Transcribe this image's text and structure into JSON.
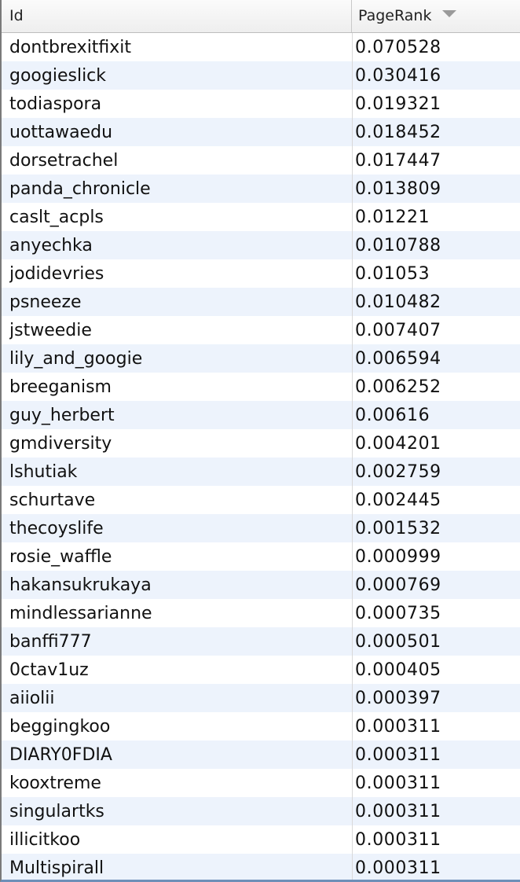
{
  "table": {
    "columns": [
      {
        "label": "Id"
      },
      {
        "label": "PageRank",
        "sort_icon": "sort-descending-icon"
      }
    ],
    "rows": [
      {
        "id": "dontbrexitfixit",
        "pagerank": "0.070528"
      },
      {
        "id": "googieslick",
        "pagerank": "0.030416"
      },
      {
        "id": "todiaspora",
        "pagerank": "0.019321"
      },
      {
        "id": "uottawaedu",
        "pagerank": "0.018452"
      },
      {
        "id": "dorsetrachel",
        "pagerank": "0.017447"
      },
      {
        "id": "panda_chronicle",
        "pagerank": "0.013809"
      },
      {
        "id": "caslt_acpls",
        "pagerank": "0.01221"
      },
      {
        "id": "anyechka",
        "pagerank": "0.010788"
      },
      {
        "id": "jodidevries",
        "pagerank": "0.01053"
      },
      {
        "id": "psneeze",
        "pagerank": "0.010482"
      },
      {
        "id": "jstweedie",
        "pagerank": "0.007407"
      },
      {
        "id": "lily_and_googie",
        "pagerank": "0.006594"
      },
      {
        "id": "breeganism",
        "pagerank": "0.006252"
      },
      {
        "id": "guy_herbert",
        "pagerank": "0.00616"
      },
      {
        "id": "gmdiversity",
        "pagerank": "0.004201"
      },
      {
        "id": "lshutiak",
        "pagerank": "0.002759"
      },
      {
        "id": "schurtave",
        "pagerank": "0.002445"
      },
      {
        "id": "thecoyslife",
        "pagerank": "0.001532"
      },
      {
        "id": "rosie_waffle",
        "pagerank": "0.000999"
      },
      {
        "id": "hakansukrukaya",
        "pagerank": "0.000769"
      },
      {
        "id": "mindlessarianne",
        "pagerank": "0.000735"
      },
      {
        "id": "banffi777",
        "pagerank": "0.000501"
      },
      {
        "id": "0ctav1uz",
        "pagerank": "0.000405"
      },
      {
        "id": "aiiolii",
        "pagerank": "0.000397"
      },
      {
        "id": "beggingkoo",
        "pagerank": "0.000311"
      },
      {
        "id": "DIARY0FDIA",
        "pagerank": "0.000311"
      },
      {
        "id": "kooxtreme",
        "pagerank": "0.000311"
      },
      {
        "id": "singulartks",
        "pagerank": "0.000311"
      },
      {
        "id": "illicitkoo",
        "pagerank": "0.000311"
      },
      {
        "id": "Multispirall",
        "pagerank": "0.000311"
      }
    ]
  }
}
